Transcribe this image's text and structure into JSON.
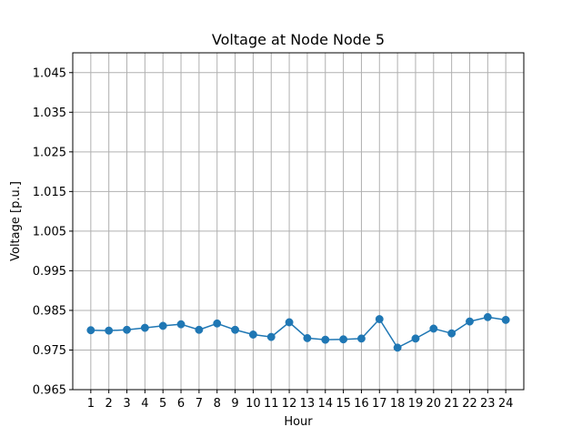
{
  "chart_data": {
    "type": "line",
    "title": "Voltage at Node Node 5",
    "xlabel": "Hour",
    "ylabel": "Voltage [p.u.]",
    "x": [
      1,
      2,
      3,
      4,
      5,
      6,
      7,
      8,
      9,
      10,
      11,
      12,
      13,
      14,
      15,
      16,
      17,
      18,
      19,
      20,
      21,
      22,
      23,
      24
    ],
    "series": [
      {
        "values": [
          0.98,
          0.9799,
          0.9801,
          0.9806,
          0.9811,
          0.9815,
          0.9801,
          0.9817,
          0.9801,
          0.9789,
          0.9783,
          0.982,
          0.978,
          0.9776,
          0.9777,
          0.9779,
          0.9828,
          0.9756,
          0.9779,
          0.9804,
          0.9792,
          0.9822,
          0.9833,
          0.9826
        ],
        "color": "#1f77b4",
        "marker": "circle"
      }
    ],
    "yticks": [
      "0.965",
      "0.975",
      "0.985",
      "0.995",
      "1.005",
      "1.015",
      "1.025",
      "1.035",
      "1.045"
    ],
    "xticks": [
      "1",
      "2",
      "3",
      "4",
      "5",
      "6",
      "7",
      "8",
      "9",
      "10",
      "11",
      "12",
      "13",
      "14",
      "15",
      "16",
      "17",
      "18",
      "19",
      "20",
      "21",
      "22",
      "23",
      "24"
    ],
    "ylim": [
      0.965,
      1.05
    ],
    "xlim": [
      0.0,
      25.0
    ],
    "grid": true,
    "legend": "none"
  }
}
